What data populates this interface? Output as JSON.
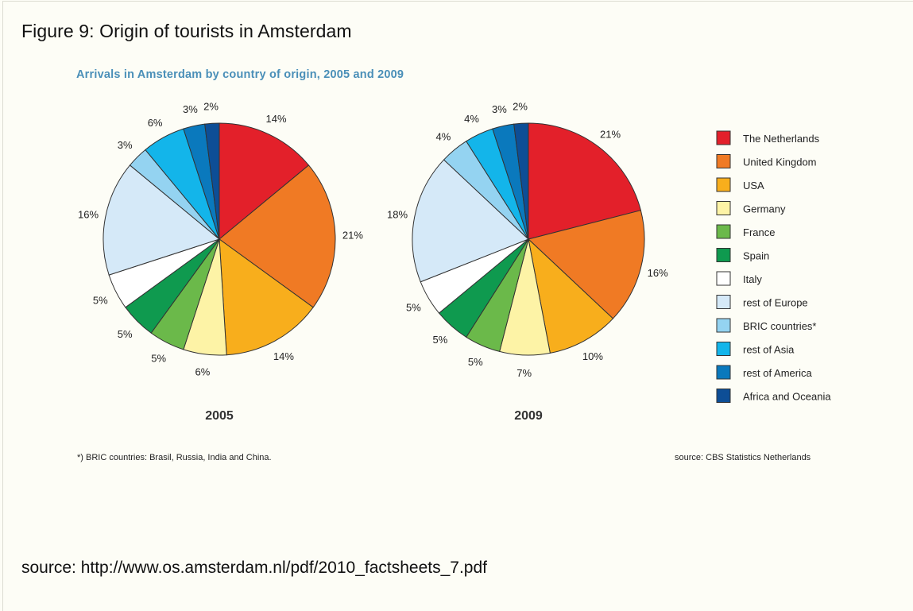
{
  "figure": {
    "caption": "Figure 9: Origin of tourists in Amsterdam",
    "footnote": "*) BRIC countries: Brasil, Russia, India and China.",
    "chart_source": "source: CBS Statistics Netherlands",
    "page_source": "source: http://www.os.amsterdam.nl/pdf/2010_factsheets_7.pdf"
  },
  "chart_data": {
    "type": "pie",
    "title": "Arrivals in Amsterdam by country of origin, 2005 and 2009",
    "legend_position": "right",
    "categories": [
      "The Netherlands",
      "United Kingdom",
      "USA",
      "Germany",
      "France",
      "Spain",
      "Italy",
      "rest of Europe",
      "BRIC countries*",
      "rest of Asia",
      "rest of America",
      "Africa and Oceania"
    ],
    "colors": [
      "#e3202a",
      "#f07a24",
      "#f8ae1c",
      "#fdf3a6",
      "#6bb94a",
      "#0f9a4f",
      "#ffffff",
      "#d5e9f8",
      "#94d3f1",
      "#13b5ea",
      "#0a79bd",
      "#0d4e96"
    ],
    "series": [
      {
        "name": "2005",
        "values": [
          14,
          21,
          14,
          6,
          5,
          5,
          5,
          16,
          3,
          6,
          3,
          2
        ]
      },
      {
        "name": "2009",
        "values": [
          21,
          16,
          10,
          7,
          5,
          5,
          5,
          18,
          4,
          4,
          3,
          2
        ]
      }
    ]
  }
}
